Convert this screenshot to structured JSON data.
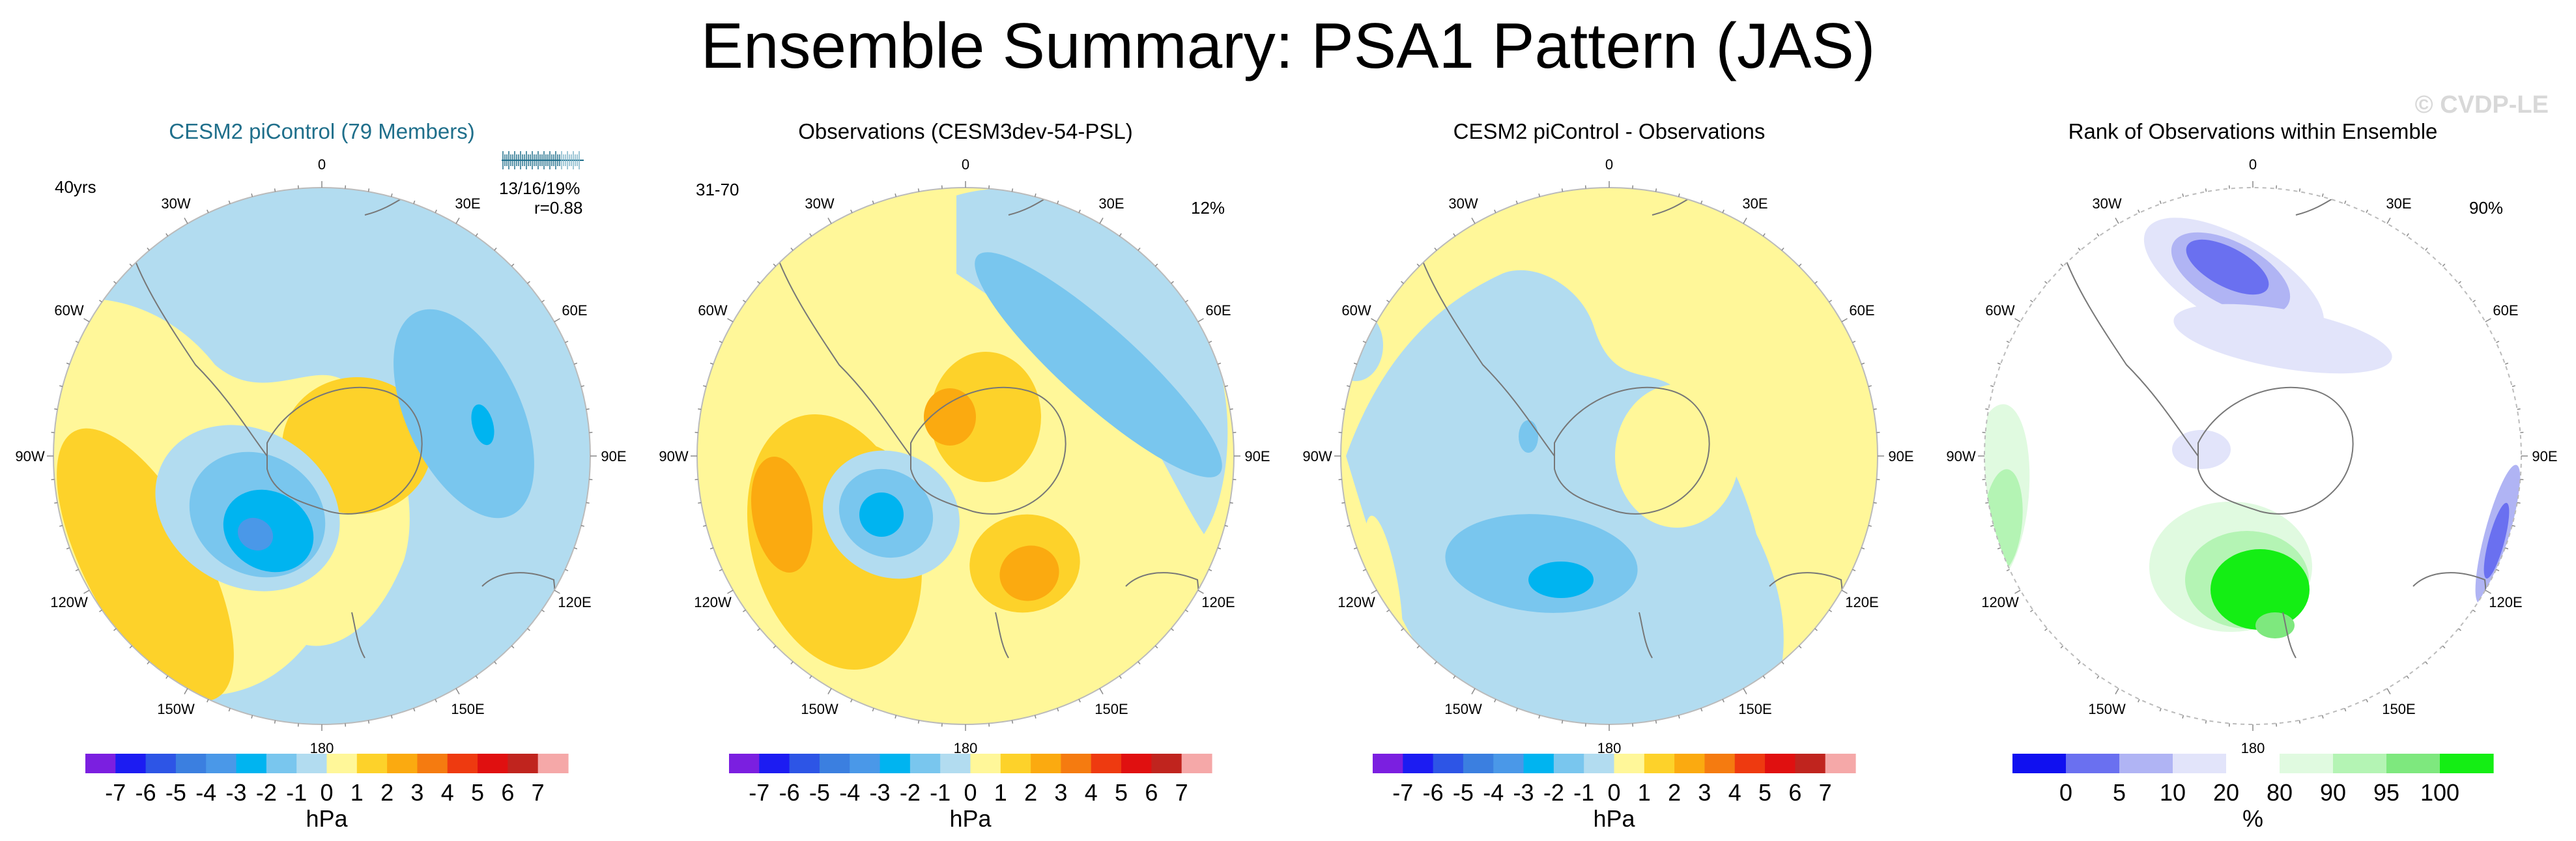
{
  "title": "Ensemble Summary: PSA1 Pattern (JAS)",
  "watermark": "© CVDP-LE",
  "lon_labels": [
    "0",
    "30E",
    "60E",
    "90E",
    "120E",
    "150E",
    "180",
    "150W",
    "120W",
    "90W",
    "60W",
    "30W"
  ],
  "colors": {
    "title_accent": "#1f6f8b",
    "coast": "#777777",
    "n7": "#7b1fe0",
    "n6": "#1c1cf2",
    "n5": "#2d55e6",
    "n4": "#3b7fe0",
    "n3": "#4a98e8",
    "n2": "#00b4f0",
    "n1": "#79c6ee",
    "n0": "#b2dcf0",
    "p0": "#fff799",
    "p1": "#fde33a",
    "p2": "#fdd22a",
    "p3": "#fbaa10",
    "p4": "#f57b10",
    "p5": "#ee3a10",
    "p6": "#e01010",
    "p7": "#c0241e",
    "p8": "#f5a8a8",
    "r1": "#1010f0",
    "r2": "#6a70f0",
    "r3": "#b0b4f4",
    "r4": "#e2e4fa",
    "r5": "#ffffff",
    "r6": "#e0fae0",
    "r7": "#b4f4b4",
    "r8": "#7ee87e",
    "r9": "#14ee14"
  },
  "chart_data": [
    {
      "type": "contour-map",
      "title": "CESM2 piControl (79 Members)",
      "projection": "south polar stereographic",
      "top_left": "40yrs",
      "ensemble_stats": "13/16/19%",
      "pattern_correlation": "r=0.88",
      "colorbar": {
        "unit": "hPa",
        "levels": [
          "-7",
          "-6",
          "-5",
          "-4",
          "-3",
          "-2",
          "-1",
          "0",
          "1",
          "2",
          "3",
          "4",
          "5",
          "6",
          "7"
        ]
      }
    },
    {
      "type": "contour-map",
      "title": "Observations (CESM3dev-54-PSL)",
      "projection": "south polar stereographic",
      "top_left": "31-70",
      "top_right": "12%",
      "colorbar": {
        "unit": "hPa",
        "levels": [
          "-7",
          "-6",
          "-5",
          "-4",
          "-3",
          "-2",
          "-1",
          "0",
          "1",
          "2",
          "3",
          "4",
          "5",
          "6",
          "7"
        ]
      }
    },
    {
      "type": "contour-map",
      "title": "CESM2 piControl - Observations",
      "projection": "south polar stereographic",
      "colorbar": {
        "unit": "hPa",
        "levels": [
          "-7",
          "-6",
          "-5",
          "-4",
          "-3",
          "-2",
          "-1",
          "0",
          "1",
          "2",
          "3",
          "4",
          "5",
          "6",
          "7"
        ]
      }
    },
    {
      "type": "contour-map",
      "title": "Rank of Observations within Ensemble",
      "projection": "south polar stereographic",
      "top_right": "90%",
      "colorbar": {
        "unit": "%",
        "levels": [
          "0",
          "5",
          "10",
          "20",
          "80",
          "90",
          "95",
          "100"
        ]
      }
    }
  ]
}
